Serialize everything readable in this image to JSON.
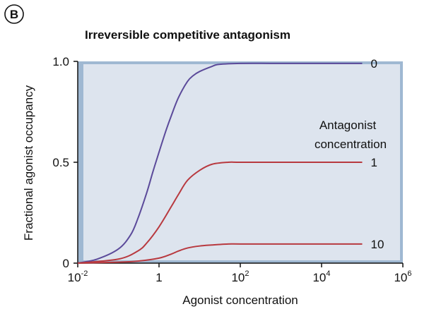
{
  "panel_label": "B",
  "chart_data": {
    "type": "line",
    "title": "Irreversible competitive antagonism",
    "xlabel": "Agonist concentration",
    "ylabel": "Fractional agonist occupancy",
    "x_scale": "log",
    "xlim": [
      0.01,
      1000000
    ],
    "ylim": [
      0,
      1.0
    ],
    "x_ticks": [
      {
        "value": 0.01,
        "base": "10",
        "exp": "-2"
      },
      {
        "value": 1,
        "base": "1",
        "exp": ""
      },
      {
        "value": 100,
        "base": "10",
        "exp": "2"
      },
      {
        "value": 10000,
        "base": "10",
        "exp": "4"
      },
      {
        "value": 1000000,
        "base": "10",
        "exp": "6"
      }
    ],
    "y_ticks": [
      {
        "value": 0,
        "label": "0"
      },
      {
        "value": 0.5,
        "label": "0.5"
      },
      {
        "value": 1.0,
        "label": "1.0"
      }
    ],
    "legend_title_lines": [
      "Antagonist",
      "concentration"
    ],
    "series": [
      {
        "name": "0",
        "color": "#5b4a9a",
        "x": [
          0.01,
          0.03,
          0.1,
          0.2,
          0.3,
          0.5,
          0.7,
          1,
          1.5,
          2,
          3,
          5,
          7,
          10,
          20,
          30,
          100,
          1000,
          100000
        ],
        "y": [
          0.0,
          0.02,
          0.07,
          0.14,
          0.22,
          0.35,
          0.45,
          0.55,
          0.66,
          0.73,
          0.82,
          0.9,
          0.93,
          0.95,
          0.975,
          0.985,
          0.99,
          0.99,
          0.99
        ]
      },
      {
        "name": "1",
        "color": "#b8393f",
        "x": [
          0.01,
          0.1,
          0.3,
          0.5,
          1,
          2,
          3,
          5,
          10,
          20,
          50,
          100,
          1000,
          100000
        ],
        "y": [
          0.0,
          0.02,
          0.06,
          0.1,
          0.18,
          0.28,
          0.34,
          0.41,
          0.46,
          0.49,
          0.5,
          0.5,
          0.5,
          0.5
        ]
      },
      {
        "name": "10",
        "color": "#b8393f",
        "x": [
          0.01,
          0.1,
          0.3,
          1,
          2,
          3,
          5,
          10,
          20,
          50,
          100,
          1000,
          100000
        ],
        "y": [
          0.0,
          0.005,
          0.01,
          0.025,
          0.045,
          0.06,
          0.075,
          0.085,
          0.09,
          0.095,
          0.095,
          0.095,
          0.095
        ]
      }
    ],
    "grid": false,
    "legend": "right",
    "background_color": "#dde4ee",
    "frame_color": "#9fb8d2"
  }
}
